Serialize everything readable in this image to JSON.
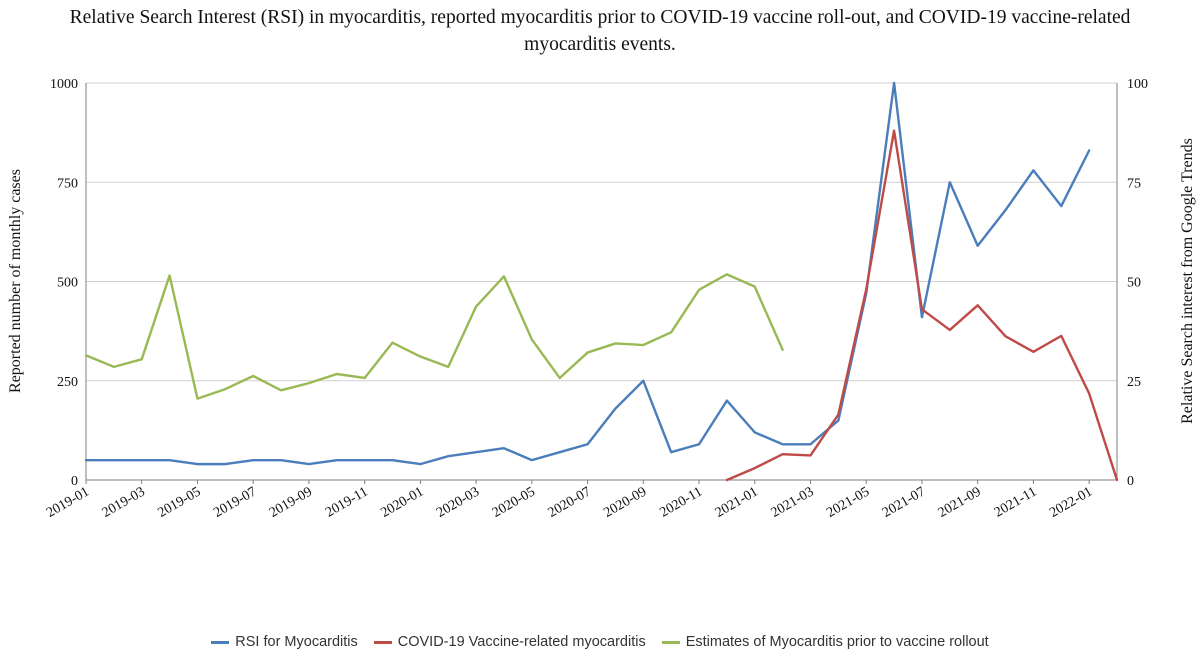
{
  "chart_data": {
    "type": "line",
    "title_lines": [
      "Relative Search Interest (RSI) in myocarditis, reported myocarditis prior to COVID-19 vaccine roll-out, and COVID-19 vaccine-related",
      "myocarditis events."
    ],
    "ylabel_left": "Reported number of monthly cases",
    "ylabel_right": "Relative Search interest from Google Trends",
    "ylim_left": [
      0,
      1000
    ],
    "ylim_right": [
      0,
      100
    ],
    "yticks_left": [
      "0",
      "250",
      "500",
      "750",
      "1000"
    ],
    "yticks_right": [
      "0",
      "25",
      "50",
      "75",
      "100"
    ],
    "x_tick_labels": [
      "2019-01",
      "2019-03",
      "2019-05",
      "2019-07",
      "2019-09",
      "2019-11",
      "2020-01",
      "2020-03",
      "2020-05",
      "2020-07",
      "2020-09",
      "2020-11",
      "2021-01",
      "2021-03",
      "2021-05",
      "2021-07",
      "2021-09",
      "2021-11",
      "2022-01"
    ],
    "x_tick_step": 2,
    "n_points": 38,
    "grid": "horizontal",
    "series": [
      {
        "name": "RSI for Myocarditis",
        "axis": "right",
        "color": "#4a7ebb",
        "start_index": 0,
        "values": [
          5,
          5,
          5,
          5,
          4,
          4,
          5,
          5,
          4,
          5,
          5,
          5,
          4,
          6,
          7,
          8,
          5,
          7,
          9,
          18,
          25,
          7,
          9,
          20,
          12,
          9,
          9,
          15,
          47,
          100,
          41,
          75,
          59,
          68,
          78,
          69,
          83
        ]
      },
      {
        "name": "COVID-19 Vaccine-related myocarditis",
        "axis": "left",
        "color": "#be4b48",
        "start_index": 23,
        "values": [
          0,
          30,
          65,
          62,
          165,
          480,
          880,
          430,
          378,
          440,
          362,
          323,
          363,
          218,
          0
        ]
      },
      {
        "name": "Estimates of Myocarditis prior to vaccine rollout",
        "axis": "left",
        "color": "#98b954",
        "start_index": 0,
        "values": [
          314,
          285,
          304,
          515,
          205,
          229,
          262,
          226,
          244,
          267,
          257,
          346,
          311,
          285,
          437,
          513,
          354,
          257,
          321,
          344,
          340,
          372,
          479,
          518,
          487,
          328
        ]
      }
    ]
  }
}
